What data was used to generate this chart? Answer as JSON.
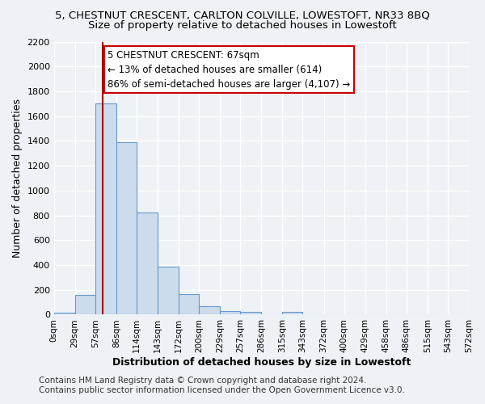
{
  "title": "5, CHESTNUT CRESCENT, CARLTON COLVILLE, LOWESTOFT, NR33 8BQ",
  "subtitle": "Size of property relative to detached houses in Lowestoft",
  "xlabel": "Distribution of detached houses by size in Lowestoft",
  "ylabel": "Number of detached properties",
  "bar_edges": [
    0,
    29,
    57,
    86,
    114,
    143,
    172,
    200,
    229,
    257,
    286,
    315,
    343,
    372,
    400,
    429,
    458,
    486,
    515,
    543,
    572
  ],
  "bar_heights": [
    15,
    160,
    1700,
    1390,
    825,
    385,
    165,
    68,
    30,
    20,
    0,
    20,
    0,
    0,
    0,
    0,
    0,
    0,
    0,
    0
  ],
  "bar_color": "#ccdcec",
  "bar_edge_color": "#6699cc",
  "vline_x": 67,
  "vline_color": "#aa0000",
  "annotation_text_line1": "5 CHESTNUT CRESCENT: 67sqm",
  "annotation_text_line2": "← 13% of detached houses are smaller (614)",
  "annotation_text_line3": "86% of semi-detached houses are larger (4,107) →",
  "ylim": [
    0,
    2200
  ],
  "xlim": [
    0,
    572
  ],
  "tick_labels": [
    "0sqm",
    "29sqm",
    "57sqm",
    "86sqm",
    "114sqm",
    "143sqm",
    "172sqm",
    "200sqm",
    "229sqm",
    "257sqm",
    "286sqm",
    "315sqm",
    "343sqm",
    "372sqm",
    "400sqm",
    "429sqm",
    "458sqm",
    "486sqm",
    "515sqm",
    "543sqm",
    "572sqm"
  ],
  "footer_line1": "Contains HM Land Registry data © Crown copyright and database right 2024.",
  "footer_line2": "Contains public sector information licensed under the Open Government Licence v3.0.",
  "background_color": "#eef2f6",
  "plot_bg_color": "#eef2f6",
  "grid_color": "#ffffff",
  "title_fontsize": 9.5,
  "subtitle_fontsize": 9.5,
  "axis_label_fontsize": 9,
  "tick_fontsize": 7.5,
  "annotation_fontsize": 8.5,
  "footer_fontsize": 7.5,
  "ytick_interval": 200
}
